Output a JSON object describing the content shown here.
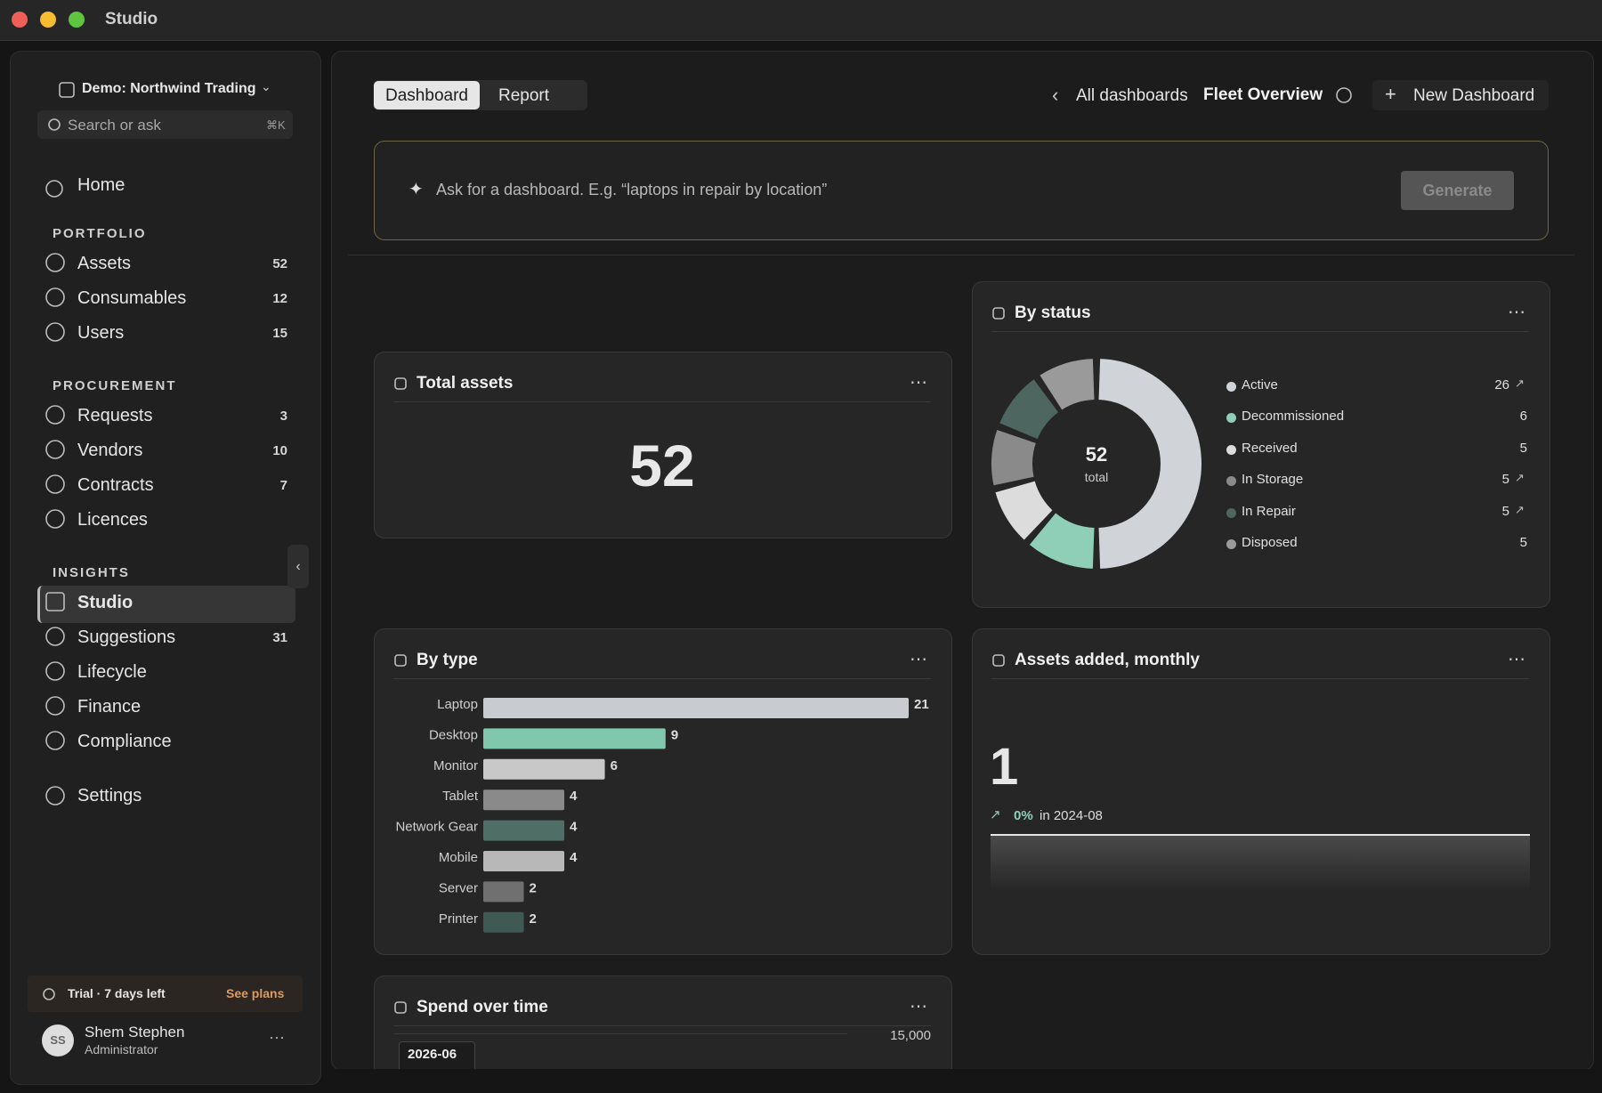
{
  "window": {
    "title": "Studio"
  },
  "sidebar": {
    "workspace": "Demo: Northwind Trading",
    "search": "Search or ask",
    "shortcut": "⌘K",
    "home": "Home",
    "sections": [
      {
        "title": "PORTFOLIO",
        "items": [
          {
            "label": "Assets",
            "count": 52
          },
          {
            "label": "Consumables",
            "count": 12
          },
          {
            "label": "Users",
            "count": 15
          }
        ]
      },
      {
        "title": "PROCUREMENT",
        "items": [
          {
            "label": "Requests",
            "count": 3
          },
          {
            "label": "Vendors",
            "count": 10
          },
          {
            "label": "Contracts",
            "count": 7
          },
          {
            "label": "Licences"
          }
        ]
      },
      {
        "title": "INSIGHTS",
        "items": [
          {
            "label": "Studio",
            "active": true
          },
          {
            "label": "Suggestions",
            "count": 31
          },
          {
            "label": "Lifecycle"
          },
          {
            "label": "Finance"
          },
          {
            "label": "Compliance"
          }
        ]
      }
    ],
    "settings": "Settings",
    "trial": {
      "text": "Trial · 7 days left",
      "link": "See plans"
    },
    "user": {
      "initials": "SS",
      "name": "Shem Stephen",
      "role": "Administrator"
    }
  },
  "header": {
    "tabs": [
      "Dashboard",
      "Report"
    ],
    "back": "All dashboards",
    "current": "Fleet Overview",
    "new": "New Dashboard"
  },
  "prompt": {
    "placeholder": "Ask for a dashboard. E.g. “laptops in repair by location”",
    "button": "Generate"
  },
  "widgets": {
    "total": {
      "title": "Total assets",
      "value": 52
    },
    "status": {
      "title": "By status",
      "total": 52,
      "total_label": "total",
      "items": [
        {
          "name": "Active",
          "value": 26,
          "color": "#d0d4d8",
          "arrow": true
        },
        {
          "name": "Decommissioned",
          "value": 6,
          "color": "#8fcfb8"
        },
        {
          "name": "Received",
          "value": 5,
          "color": "#dcdcdc"
        },
        {
          "name": "In Storage",
          "value": 5,
          "color": "#8a8a8a",
          "arrow": true
        },
        {
          "name": "In Repair",
          "value": 5,
          "color": "#4e6660",
          "arrow": true
        },
        {
          "name": "Disposed",
          "value": 5,
          "color": "#9a9a9a"
        }
      ]
    },
    "type": {
      "title": "By type",
      "categories": [
        "Laptop",
        "Desktop",
        "Monitor",
        "Tablet",
        "Network Gear",
        "Mobile",
        "Server",
        "Printer"
      ],
      "values": [
        21,
        9,
        6,
        4,
        4,
        4,
        2,
        2
      ],
      "colors": [
        "#c8ccd0",
        "#7fc8ad",
        "#c8c8c8",
        "#8a8a8a",
        "#4e6e66",
        "#b8b8b8",
        "#707070",
        "#3e5a52"
      ]
    },
    "monthly": {
      "title": "Assets added, monthly",
      "value": 1,
      "change": "0%",
      "period": "in 2024-08"
    },
    "spend": {
      "title": "Spend over time",
      "tick": "15,000",
      "tooltip_date": "2026-06"
    }
  }
}
